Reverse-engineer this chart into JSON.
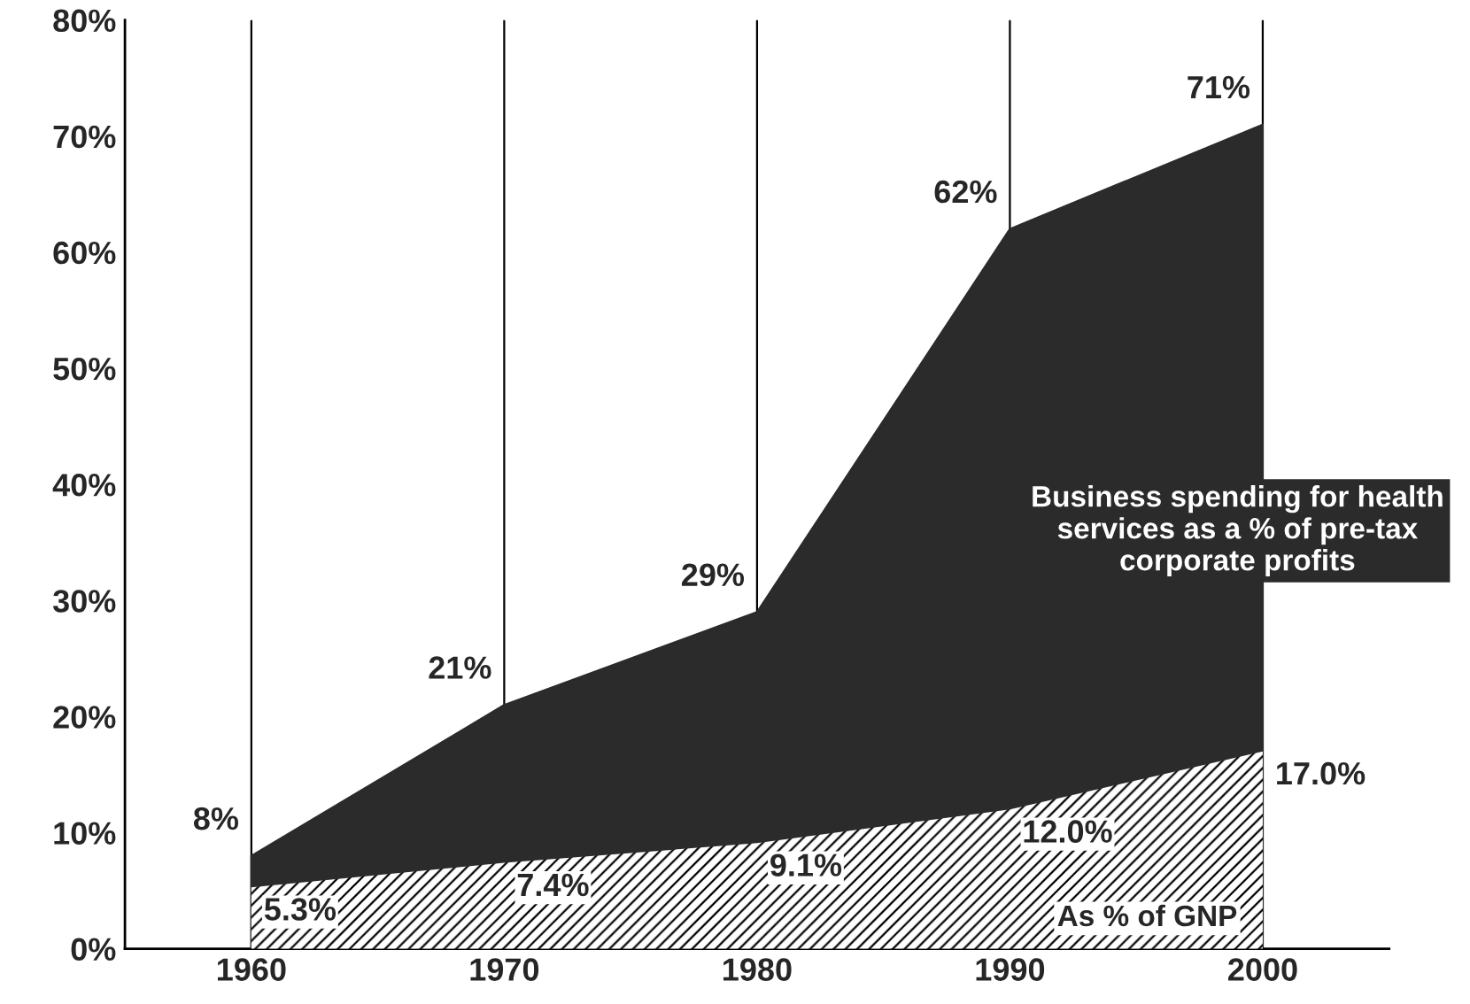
{
  "chart_data": {
    "type": "area",
    "x": [
      1960,
      1970,
      1980,
      1990,
      2000
    ],
    "series": [
      {
        "name": "Business spending for health services as a % of pre-tax corporate profits",
        "color": "#2b2b2b",
        "values": [
          8,
          21,
          29,
          62,
          71
        ],
        "value_labels": [
          "8%",
          "21%",
          "29%",
          "62%",
          "71%"
        ]
      },
      {
        "name": "As % of GNP",
        "color": "#ffffff",
        "values": [
          5.3,
          7.4,
          9.1,
          12.0,
          17.0
        ],
        "value_labels": [
          "5.3%",
          "7.4%",
          "9.1%",
          "12.0%",
          "17.0%"
        ]
      }
    ],
    "xlim": [
      1955,
      2005
    ],
    "xticks": [
      1960,
      1970,
      1980,
      1990,
      2000
    ],
    "ylim": [
      0,
      80
    ],
    "yticks": [
      {
        "value": 0,
        "label": "0%"
      },
      {
        "value": 10,
        "label": "10%"
      },
      {
        "value": 20,
        "label": "20%"
      },
      {
        "value": 30,
        "label": "30%"
      },
      {
        "value": 40,
        "label": "40%"
      },
      {
        "value": 50,
        "label": "50%"
      },
      {
        "value": 60,
        "label": "60%"
      },
      {
        "value": 70,
        "label": "70%"
      },
      {
        "value": 80,
        "label": "80%"
      }
    ],
    "ref_lines": [
      {
        "axis": "x",
        "value": 1960
      },
      {
        "axis": "x",
        "value": 1970
      },
      {
        "axis": "x",
        "value": 1980
      },
      {
        "axis": "x",
        "value": 1990
      },
      {
        "axis": "x",
        "value": 2000
      }
    ],
    "grid": false,
    "legend": false
  }
}
